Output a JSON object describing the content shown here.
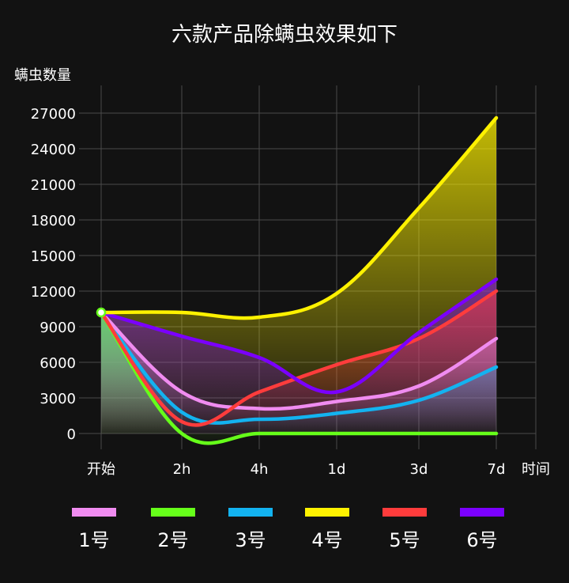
{
  "chart_data": {
    "type": "area",
    "title": "六款产品除螨虫效果如下",
    "ylabel": "螨虫数量",
    "xlabel": "时间",
    "categories": [
      "开始",
      "2h",
      "4h",
      "1d",
      "3d",
      "7d"
    ],
    "yticks": [
      "0",
      "3000",
      "6000",
      "9000",
      "12000",
      "15000",
      "18000",
      "21000",
      "24000",
      "27000"
    ],
    "ylim": [
      0,
      27000
    ],
    "grid": true,
    "legend_position": "bottom",
    "series": [
      {
        "name": "1号",
        "color": "#f08cf0",
        "values": [
          10200,
          3500,
          2100,
          2700,
          4000,
          8000
        ]
      },
      {
        "name": "2号",
        "color": "#66ff1a",
        "values": [
          10200,
          0,
          0,
          0,
          0,
          0
        ]
      },
      {
        "name": "3号",
        "color": "#13b3f0",
        "values": [
          10200,
          1800,
          1200,
          1700,
          2800,
          5600
        ]
      },
      {
        "name": "4号",
        "color": "#fff200",
        "values": [
          10200,
          10200,
          9800,
          11800,
          19000,
          26600
        ]
      },
      {
        "name": "5号",
        "color": "#ff3c3c",
        "values": [
          10200,
          1000,
          3500,
          5800,
          8000,
          12000
        ]
      },
      {
        "name": "6号",
        "color": "#7b00ff",
        "values": [
          10200,
          8200,
          6400,
          3500,
          8500,
          13000
        ]
      }
    ]
  }
}
